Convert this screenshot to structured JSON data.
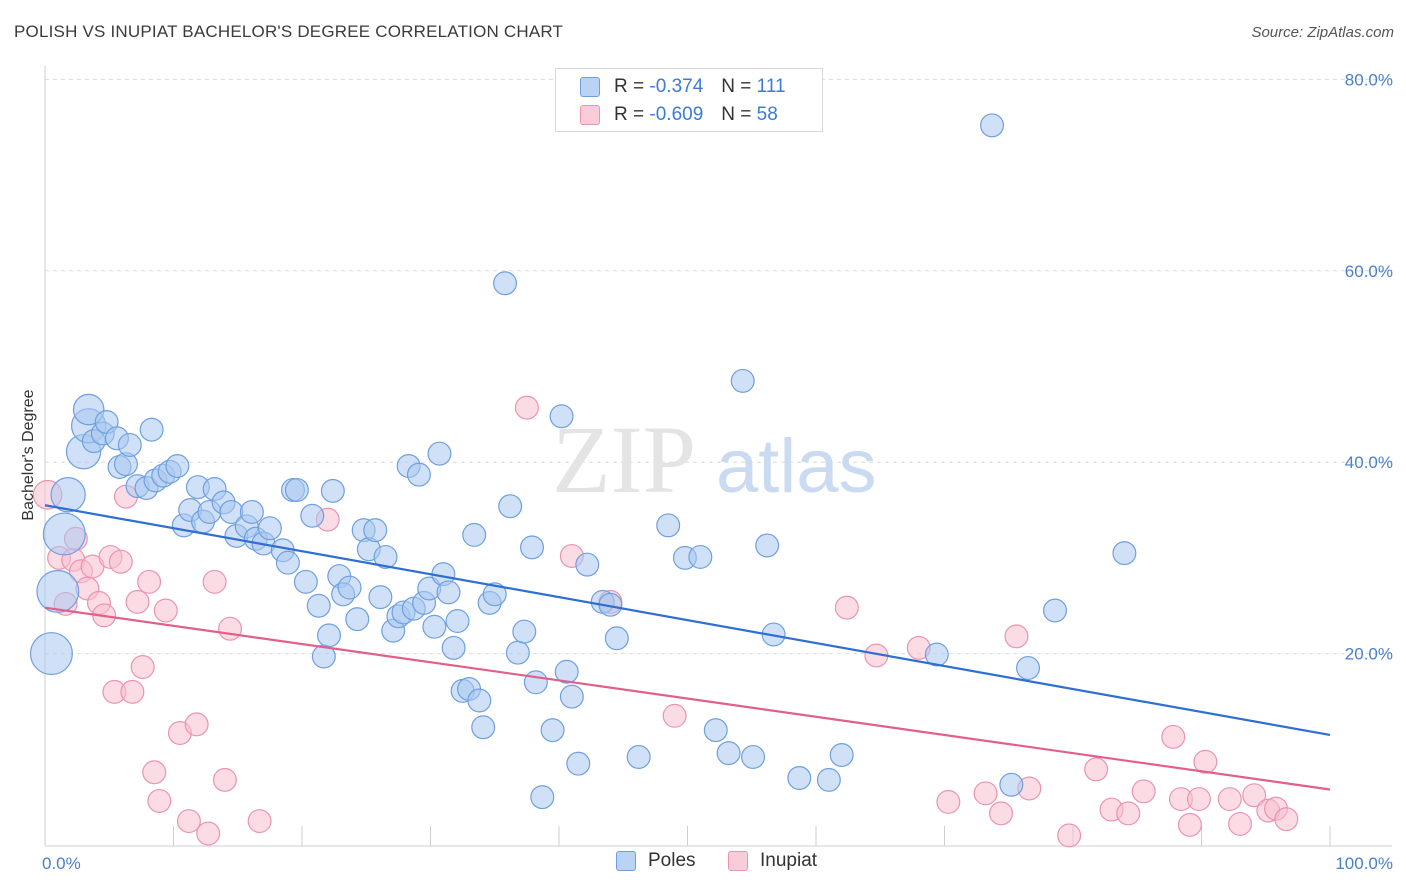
{
  "title": "POLISH VS INUPIAT BACHELOR'S DEGREE CORRELATION CHART",
  "source": "Source: ZipAtlas.com",
  "watermark": {
    "zip": "ZIP",
    "atlas": "atlas"
  },
  "legend": {
    "rows": [
      {
        "r_label": "R =",
        "r_value": "-0.374",
        "n_label": "N =",
        "n_value": "111"
      },
      {
        "r_label": "R =",
        "r_value": "-0.609",
        "n_label": "N =",
        "n_value": "58"
      }
    ]
  },
  "colors": {
    "poles_fill": "#a9c8f0",
    "poles_stroke": "#6e9fe0",
    "poles_line": "#2f6fd0",
    "inupiat_fill": "#f7bfd0",
    "inupiat_stroke": "#ec93b0",
    "inupiat_line": "#e0608a",
    "tick_text": "#4a7fcb"
  },
  "chart_data": {
    "type": "scatter",
    "title": "POLISH VS INUPIAT BACHELOR'S DEGREE CORRELATION CHART",
    "xlabel": "",
    "ylabel": "Bachelor's Degree",
    "xlim": [
      0,
      100
    ],
    "ylim": [
      0,
      80
    ],
    "x_tick_labels": [
      "0.0%",
      "100.0%"
    ],
    "y_ticks": [
      20,
      40,
      60,
      80
    ],
    "y_tick_labels": [
      "20.0%",
      "40.0%",
      "60.0%",
      "80.0%"
    ],
    "grid": "horizontal dashed",
    "legend_position": "top-center",
    "series": [
      {
        "name": "Poles",
        "r": -0.374,
        "n": 111,
        "trend": [
          [
            0,
            35.5
          ],
          [
            100,
            11.5
          ]
        ],
        "points": [
          [
            0.5,
            20,
            2.2
          ],
          [
            1,
            26.5,
            2.2
          ],
          [
            1.5,
            32.5,
            2.2
          ],
          [
            1.8,
            36.6,
            1.8
          ],
          [
            3,
            41.1,
            1.8
          ],
          [
            3.4,
            43.8,
            1.8
          ],
          [
            3.4,
            45.5,
            1.6
          ],
          [
            3.8,
            42.2,
            1.2
          ],
          [
            4.5,
            43,
            1.2
          ],
          [
            4.8,
            44.2,
            1.2
          ],
          [
            5.6,
            42.5,
            1.2
          ],
          [
            5.8,
            39.5,
            1.2
          ],
          [
            6.3,
            39.8,
            1.2
          ],
          [
            6.6,
            41.8,
            1.2
          ],
          [
            7.2,
            37.5,
            1.2
          ],
          [
            7.9,
            37.3,
            1.2
          ],
          [
            8.3,
            43.4,
            1.2
          ],
          [
            8.6,
            38.1,
            1.2
          ],
          [
            9.2,
            38.6,
            1.2
          ],
          [
            9.7,
            39,
            1.2
          ],
          [
            10.3,
            39.6,
            1.2
          ],
          [
            10.8,
            33.4,
            1.2
          ],
          [
            11.3,
            35,
            1.2
          ],
          [
            11.9,
            37.4,
            1.2
          ],
          [
            12.3,
            33.8,
            1.2
          ],
          [
            12.8,
            34.8,
            1.2
          ],
          [
            13.2,
            37.2,
            1.2
          ],
          [
            13.9,
            35.8,
            1.2
          ],
          [
            14.5,
            34.8,
            1.2
          ],
          [
            14.9,
            32.3,
            1.2
          ],
          [
            15.7,
            33.3,
            1.2
          ],
          [
            16.1,
            34.8,
            1.2
          ],
          [
            16.4,
            32,
            1.2
          ],
          [
            17,
            31.5,
            1.2
          ],
          [
            17.5,
            33.1,
            1.2
          ],
          [
            18.5,
            30.8,
            1.2
          ],
          [
            18.9,
            29.5,
            1.2
          ],
          [
            19.3,
            37.1,
            1.2
          ],
          [
            19.6,
            37.1,
            1.2
          ],
          [
            20.3,
            27.5,
            1.2
          ],
          [
            20.8,
            34.4,
            1.2
          ],
          [
            21.3,
            25,
            1.2
          ],
          [
            21.7,
            19.7,
            1.2
          ],
          [
            22.1,
            21.9,
            1.2
          ],
          [
            22.4,
            37,
            1.2
          ],
          [
            22.9,
            28.1,
            1.2
          ],
          [
            23.2,
            26.2,
            1.2
          ],
          [
            23.7,
            26.9,
            1.2
          ],
          [
            24.3,
            23.6,
            1.2
          ],
          [
            24.8,
            32.9,
            1.2
          ],
          [
            25.2,
            30.9,
            1.2
          ],
          [
            25.7,
            32.9,
            1.2
          ],
          [
            26.1,
            25.9,
            1.2
          ],
          [
            26.5,
            30.1,
            1.2
          ],
          [
            27.1,
            22.4,
            1.2
          ],
          [
            27.5,
            23.9,
            1.2
          ],
          [
            27.9,
            24.3,
            1.2
          ],
          [
            28.3,
            39.6,
            1.2
          ],
          [
            28.7,
            24.7,
            1.2
          ],
          [
            29.1,
            38.7,
            1.2
          ],
          [
            29.5,
            25.3,
            1.2
          ],
          [
            29.9,
            26.8,
            1.2
          ],
          [
            30.3,
            22.8,
            1.2
          ],
          [
            30.7,
            40.9,
            1.2
          ],
          [
            31,
            28.3,
            1.2
          ],
          [
            31.4,
            26.4,
            1.2
          ],
          [
            31.8,
            20.6,
            1.2
          ],
          [
            32.1,
            23.4,
            1.2
          ],
          [
            32.5,
            16.1,
            1.2
          ],
          [
            33,
            16.3,
            1.2
          ],
          [
            33.4,
            32.4,
            1.2
          ],
          [
            33.8,
            15.1,
            1.2
          ],
          [
            34.1,
            12.3,
            1.2
          ],
          [
            34.6,
            25.3,
            1.2
          ],
          [
            35,
            26.2,
            1.2
          ],
          [
            35.8,
            58.7,
            1.2
          ],
          [
            36.2,
            35.4,
            1.2
          ],
          [
            36.8,
            20.1,
            1.2
          ],
          [
            37.3,
            22.3,
            1.2
          ],
          [
            37.9,
            31.1,
            1.2
          ],
          [
            38.2,
            17,
            1.2
          ],
          [
            38.7,
            5,
            1.2
          ],
          [
            39.5,
            12,
            1.2
          ],
          [
            40.2,
            44.8,
            1.2
          ],
          [
            40.6,
            18.1,
            1.2
          ],
          [
            41,
            15.5,
            1.2
          ],
          [
            41.5,
            8.5,
            1.2
          ],
          [
            42.2,
            29.3,
            1.2
          ],
          [
            43.4,
            25.4,
            1.2
          ],
          [
            44,
            25.1,
            1.2
          ],
          [
            44.5,
            21.6,
            1.2
          ],
          [
            46.2,
            9.2,
            1.2
          ],
          [
            48.5,
            33.4,
            1.2
          ],
          [
            49.8,
            30,
            1.2
          ],
          [
            51,
            30.1,
            1.2
          ],
          [
            52.2,
            12,
            1.2
          ],
          [
            53.2,
            9.6,
            1.2
          ],
          [
            54.3,
            48.5,
            1.2
          ],
          [
            55.1,
            9.2,
            1.2
          ],
          [
            56.2,
            31.3,
            1.2
          ],
          [
            56.7,
            22,
            1.2
          ],
          [
            58.7,
            7,
            1.2
          ],
          [
            61,
            6.8,
            1.2
          ],
          [
            62,
            9.4,
            1.2
          ],
          [
            69.4,
            19.9,
            1.2
          ],
          [
            73.7,
            75.2,
            1.2
          ],
          [
            75.2,
            6.3,
            1.2
          ],
          [
            76.5,
            18.5,
            1.2
          ],
          [
            78.6,
            24.5,
            1.2
          ],
          [
            84,
            30.5,
            1.2
          ]
        ]
      },
      {
        "name": "Inupiat",
        "r": -0.609,
        "n": 58,
        "trend": [
          [
            0,
            24.8
          ],
          [
            100,
            5.8
          ]
        ],
        "points": [
          [
            0.2,
            36.6,
            1.5
          ],
          [
            1.1,
            30,
            1.2
          ],
          [
            1.6,
            25.2,
            1.2
          ],
          [
            2.2,
            29.8,
            1.2
          ],
          [
            2.4,
            32,
            1.2
          ],
          [
            2.8,
            28.6,
            1.2
          ],
          [
            3.3,
            26.8,
            1.2
          ],
          [
            3.7,
            29.1,
            1.2
          ],
          [
            4.2,
            25.3,
            1.2
          ],
          [
            4.6,
            24,
            1.2
          ],
          [
            5.1,
            30.1,
            1.2
          ],
          [
            5.4,
            16,
            1.2
          ],
          [
            5.9,
            29.6,
            1.2
          ],
          [
            6.3,
            36.4,
            1.2
          ],
          [
            6.8,
            16,
            1.2
          ],
          [
            7.2,
            25.4,
            1.2
          ],
          [
            7.6,
            18.6,
            1.2
          ],
          [
            8.1,
            27.5,
            1.2
          ],
          [
            8.5,
            7.6,
            1.2
          ],
          [
            8.9,
            4.6,
            1.2
          ],
          [
            9.4,
            24.5,
            1.2
          ],
          [
            10.5,
            11.7,
            1.2
          ],
          [
            11.2,
            2.5,
            1.2
          ],
          [
            11.8,
            12.6,
            1.2
          ],
          [
            12.7,
            1.2,
            1.2
          ],
          [
            13.2,
            27.5,
            1.2
          ],
          [
            14,
            6.8,
            1.2
          ],
          [
            14.4,
            22.6,
            1.2
          ],
          [
            16.7,
            2.5,
            1.2
          ],
          [
            22,
            34,
            1.2
          ],
          [
            37.5,
            45.7,
            1.2
          ],
          [
            41,
            30.2,
            1.2
          ],
          [
            44,
            25.4,
            1.2
          ],
          [
            49,
            13.5,
            1.2
          ],
          [
            62.4,
            24.8,
            1.2
          ],
          [
            64.7,
            19.8,
            1.2
          ],
          [
            68,
            20.6,
            1.2
          ],
          [
            70.3,
            4.5,
            1.2
          ],
          [
            73.2,
            5.4,
            1.2
          ],
          [
            74.4,
            3.3,
            1.2
          ],
          [
            75.6,
            21.8,
            1.2
          ],
          [
            76.6,
            5.9,
            1.2
          ],
          [
            79.7,
            1,
            1.2
          ],
          [
            81.8,
            7.9,
            1.2
          ],
          [
            83,
            3.7,
            1.2
          ],
          [
            84.3,
            3.3,
            1.2
          ],
          [
            85.5,
            5.6,
            1.2
          ],
          [
            87.8,
            11.3,
            1.2
          ],
          [
            88.4,
            4.8,
            1.2
          ],
          [
            89.1,
            2.1,
            1.2
          ],
          [
            89.8,
            4.8,
            1.2
          ],
          [
            90.3,
            8.7,
            1.2
          ],
          [
            92.2,
            4.8,
            1.2
          ],
          [
            93,
            2.2,
            1.2
          ],
          [
            94.1,
            5.2,
            1.2
          ],
          [
            95.2,
            3.6,
            1.2
          ],
          [
            95.8,
            3.8,
            1.2
          ],
          [
            96.6,
            2.7,
            1.2
          ]
        ]
      }
    ]
  }
}
